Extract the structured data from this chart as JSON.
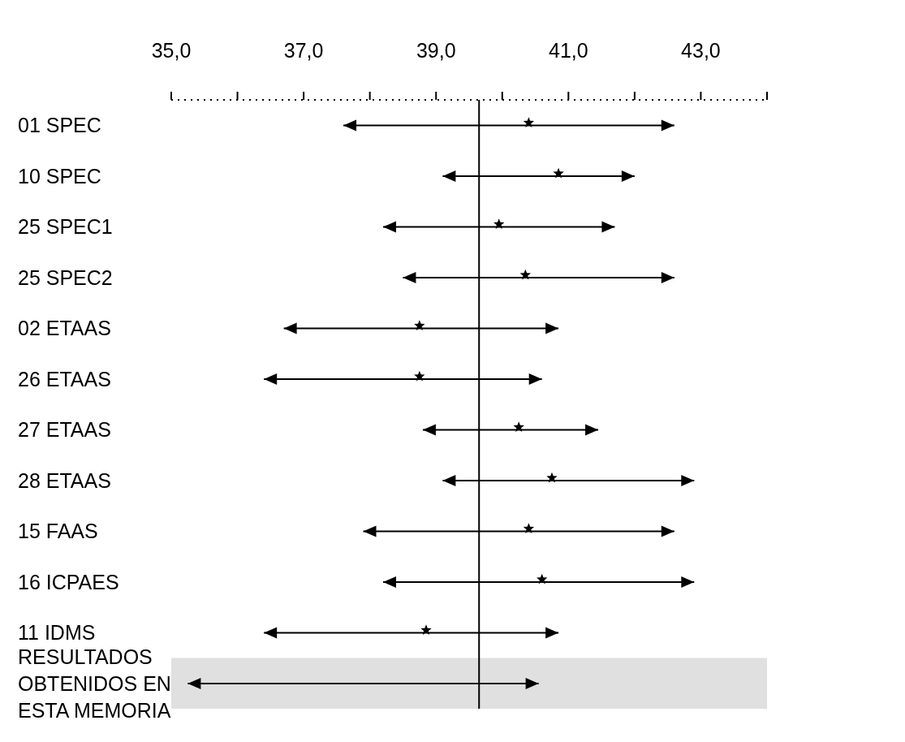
{
  "chart_data": {
    "type": "bar",
    "orientation": "horizontal",
    "categories": [
      "01 SPEC",
      "10 SPEC",
      "25 SPEC1",
      "25 SPEC2",
      "02 ETAAS",
      "26 ETAAS",
      "27 ETAAS",
      "28 ETAAS",
      "15 FAAS",
      "16 ICPAES",
      "11 IDMS",
      "RESULTADOS OBTENIDOS EN ESTA MEMORIA"
    ],
    "series": [
      {
        "color": "#000000",
        "base": [
          37.6,
          39.1,
          38.2,
          38.5,
          36.7,
          36.4,
          38.8,
          39.1,
          37.9,
          38.2,
          36.4,
          35.25
        ],
        "values": [
          5.0,
          2.9,
          3.5,
          4.1,
          4.15,
          4.2,
          2.65,
          3.8,
          4.7,
          4.7,
          4.45,
          5.3
        ]
      },
      {
        "type": "scatter",
        "marker": "star",
        "color": "#000000",
        "values": [
          40.4,
          40.85,
          39.95,
          40.35,
          38.75,
          38.75,
          40.25,
          40.75,
          40.4,
          40.6,
          38.85,
          null
        ]
      }
    ],
    "xlim": [
      35,
      44
    ],
    "xticks": [
      {
        "value": 35,
        "label": "35,0"
      },
      {
        "value": 36,
        "label": null
      },
      {
        "value": 37,
        "label": "37,0"
      },
      {
        "value": 38,
        "label": null
      },
      {
        "value": 39,
        "label": "39,0"
      },
      {
        "value": 40,
        "label": null
      },
      {
        "value": 41,
        "label": "41,0"
      },
      {
        "value": 42,
        "label": null
      },
      {
        "value": 43,
        "label": "43,0"
      },
      {
        "value": 44,
        "label": null
      }
    ],
    "ref_lines": [
      {
        "axis": "x",
        "value": 39.65,
        "color": "#000000"
      }
    ],
    "bands": [
      {
        "axis": "y",
        "from": "RESULTADOS OBTENIDOS EN ESTA MEMORIA",
        "to": "RESULTADOS OBTENIDOS EN ESTA MEMORIA",
        "color": "#e0e0e0"
      }
    ],
    "grid": false,
    "legend": false
  }
}
